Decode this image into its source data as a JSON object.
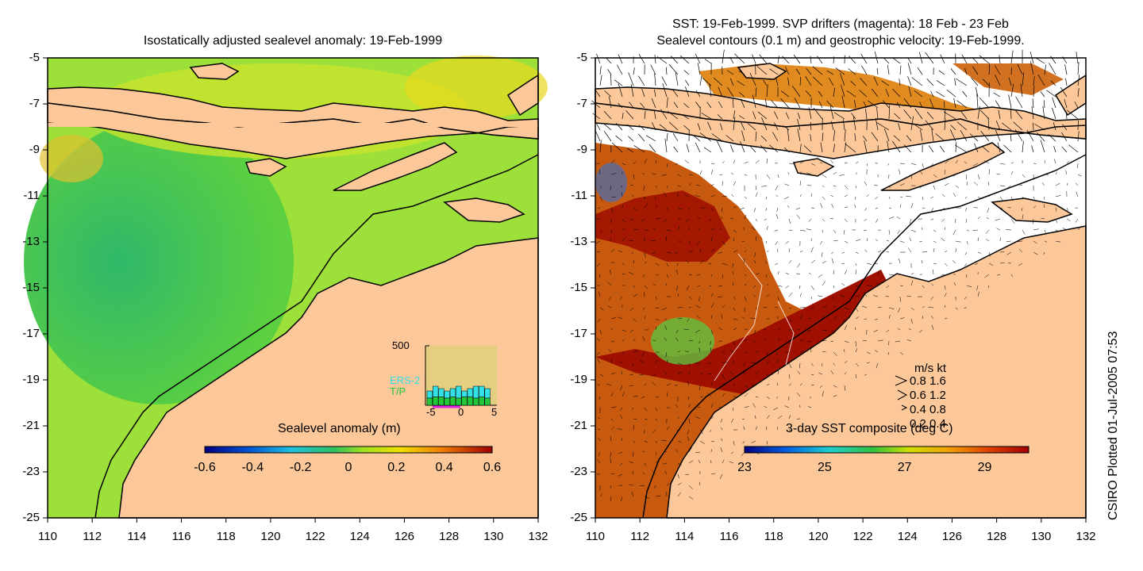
{
  "left_panel": {
    "title": "Isostatically adjusted sealevel anomaly: 19-Feb-1999",
    "colorbar": {
      "label": "Sealevel anomaly (m)",
      "ticks": [
        "-0.6",
        "-0.4",
        "-0.2",
        "0",
        "0.2",
        "0.4",
        "0.6"
      ]
    },
    "inset": {
      "y_label": "500",
      "series": [
        "ERS-2",
        "T/P"
      ],
      "x_ticks": [
        "-5",
        "0",
        "5"
      ],
      "ers2_values": [
        0.6,
        0.8,
        0.7,
        0.6,
        0.7,
        0.8,
        0.6,
        0.7,
        0.8,
        0.8,
        0.7
      ],
      "tp_values": [
        0.3,
        0.35,
        0.35,
        0.3,
        0.35,
        0.3,
        0.35,
        0.35,
        0.3,
        0.35,
        0.3
      ],
      "colors": {
        "ers2": "#33e0e8",
        "tp": "#22c83a"
      }
    }
  },
  "right_panel": {
    "title_line1": "SST: 19-Feb-1999. SVP drifters (magenta): 18 Feb - 23 Feb",
    "title_line2": "Sealevel contours (0.1 m) and geostrophic velocity: 19-Feb-1999.",
    "colorbar": {
      "label": "3-day SST composite (deg C)",
      "ticks": [
        "23",
        "25",
        "27",
        "29"
      ]
    },
    "velocity_legend": {
      "header": "m/s  kt",
      "rows": [
        {
          "ms": "0.8",
          "kt": "1.6"
        },
        {
          "ms": "0.6",
          "kt": "1.2"
        },
        {
          "ms": "0.4",
          "kt": "0.8"
        },
        {
          "ms": "0.2",
          "kt": "0.4"
        }
      ]
    }
  },
  "axes": {
    "y_ticks": [
      "-5",
      "-7",
      "-9",
      "-11",
      "-13",
      "-15",
      "-17",
      "-19",
      "-21",
      "-23",
      "-25"
    ],
    "x_ticks": [
      "110",
      "112",
      "114",
      "116",
      "118",
      "120",
      "122",
      "124",
      "126",
      "128",
      "130",
      "132"
    ]
  },
  "credit": "CSIRO Plotted 01-Jul-2005 07:53",
  "colors": {
    "land": "#fcc89a",
    "sea_low": "#3cc85a",
    "sea_high": "#d8e820",
    "sst_hot": "#a01000",
    "sst_warm": "#d86a10"
  }
}
